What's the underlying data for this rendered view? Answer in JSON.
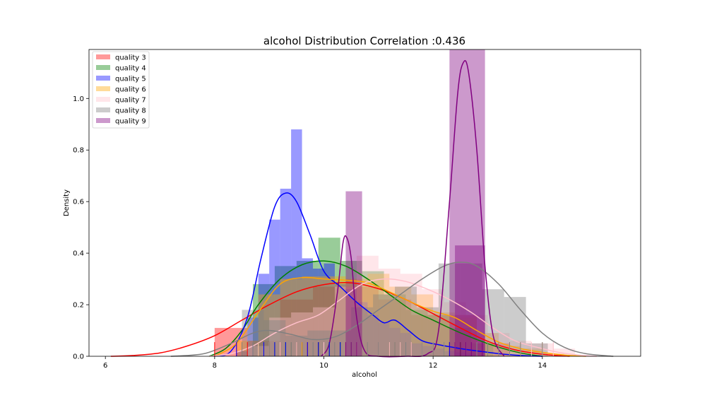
{
  "chart_data": {
    "type": "histogram-kde",
    "title": "alcohol Distribution Correlation :0.436",
    "xlabel": "alcohol",
    "ylabel": "Density",
    "xlim": [
      5.7,
      15.8
    ],
    "ylim": [
      0,
      1.19
    ],
    "x_ticks": [
      6,
      8,
      10,
      12,
      14
    ],
    "y_ticks": [
      0.0,
      0.2,
      0.4,
      0.6,
      0.8,
      1.0
    ],
    "x_tick_labels": [
      "6",
      "8",
      "10",
      "12",
      "14"
    ],
    "y_tick_labels": [
      "0.0",
      "0.2",
      "0.4",
      "0.6",
      "0.8",
      "1.0"
    ],
    "legend_position": "top-left",
    "series": [
      {
        "name": "quality 3",
        "color": "#ff0000",
        "bins": [
          [
            8.0,
            8.6,
            0.11
          ],
          [
            8.6,
            9.2,
            0.06
          ],
          [
            9.2,
            9.8,
            0.22
          ],
          [
            9.8,
            10.4,
            0.27
          ],
          [
            10.4,
            11.0,
            0.27
          ],
          [
            11.0,
            11.6,
            0.22
          ],
          [
            11.6,
            12.2,
            0.16
          ],
          [
            12.2,
            12.8,
            0.16
          ],
          [
            12.8,
            13.4,
            0.05
          ]
        ],
        "kde": [
          [
            6.1,
            0.0
          ],
          [
            6.5,
            0.003
          ],
          [
            7.0,
            0.013
          ],
          [
            7.5,
            0.04
          ],
          [
            8.0,
            0.08
          ],
          [
            8.5,
            0.14
          ],
          [
            9.0,
            0.2
          ],
          [
            9.5,
            0.25
          ],
          [
            10.0,
            0.278
          ],
          [
            10.5,
            0.285
          ],
          [
            11.0,
            0.262
          ],
          [
            11.5,
            0.22
          ],
          [
            12.0,
            0.165
          ],
          [
            12.5,
            0.11
          ],
          [
            13.0,
            0.058
          ],
          [
            13.5,
            0.025
          ],
          [
            14.0,
            0.008
          ],
          [
            14.5,
            0.0
          ]
        ],
        "rug": [
          8.0,
          8.4,
          8.6,
          9.0,
          9.2,
          9.5,
          9.7,
          9.9,
          10.0,
          10.2,
          10.4,
          10.6,
          10.8,
          11.0,
          11.3,
          11.6,
          12.0,
          12.3,
          12.5,
          13.0
        ]
      },
      {
        "name": "quality 4",
        "color": "#008000",
        "bins": [
          [
            8.7,
            9.1,
            0.28
          ],
          [
            9.1,
            9.5,
            0.35
          ],
          [
            9.5,
            9.9,
            0.37
          ],
          [
            9.9,
            10.3,
            0.46
          ],
          [
            10.3,
            10.7,
            0.37
          ],
          [
            10.7,
            11.1,
            0.33
          ],
          [
            11.1,
            11.5,
            0.24
          ],
          [
            11.5,
            11.9,
            0.18
          ],
          [
            11.9,
            12.3,
            0.16
          ],
          [
            12.3,
            12.7,
            0.11
          ],
          [
            12.7,
            13.1,
            0.05
          ]
        ],
        "kde": [
          [
            7.9,
            0.0
          ],
          [
            8.2,
            0.03
          ],
          [
            8.5,
            0.1
          ],
          [
            8.8,
            0.2
          ],
          [
            9.2,
            0.3
          ],
          [
            9.6,
            0.355
          ],
          [
            10.0,
            0.37
          ],
          [
            10.4,
            0.35
          ],
          [
            10.8,
            0.3
          ],
          [
            11.2,
            0.24
          ],
          [
            11.6,
            0.18
          ],
          [
            12.0,
            0.14
          ],
          [
            12.4,
            0.1
          ],
          [
            12.8,
            0.065
          ],
          [
            13.2,
            0.035
          ],
          [
            13.6,
            0.013
          ],
          [
            14.0,
            0.0
          ]
        ],
        "rug": [
          8.8,
          9.0,
          9.1,
          9.3,
          9.4,
          9.5,
          9.6,
          9.8,
          9.9,
          10.0,
          10.1,
          10.2,
          10.3,
          10.5,
          10.6,
          10.8,
          11.0,
          11.2,
          11.4,
          11.6,
          12.0,
          12.2,
          12.5,
          13.0
        ]
      },
      {
        "name": "quality 5",
        "color": "#0000ff",
        "bins": [
          [
            8.4,
            8.6,
            0.02
          ],
          [
            8.6,
            8.8,
            0.15
          ],
          [
            8.8,
            9.0,
            0.32
          ],
          [
            9.0,
            9.2,
            0.53
          ],
          [
            9.2,
            9.4,
            0.65
          ],
          [
            9.4,
            9.6,
            0.88
          ],
          [
            9.6,
            9.8,
            0.38
          ],
          [
            9.8,
            10.0,
            0.34
          ],
          [
            10.0,
            10.2,
            0.36
          ],
          [
            10.2,
            10.4,
            0.28
          ],
          [
            10.4,
            10.6,
            0.26
          ],
          [
            10.6,
            10.8,
            0.21
          ],
          [
            10.8,
            11.0,
            0.16
          ],
          [
            11.0,
            11.2,
            0.13
          ],
          [
            11.2,
            11.4,
            0.11
          ],
          [
            11.4,
            11.6,
            0.09
          ],
          [
            11.6,
            11.8,
            0.05
          ],
          [
            11.8,
            12.0,
            0.04
          ],
          [
            12.0,
            12.2,
            0.03
          ],
          [
            12.2,
            12.4,
            0.02
          ],
          [
            12.4,
            12.6,
            0.015
          ],
          [
            12.6,
            12.8,
            0.01
          ]
        ],
        "kde": [
          [
            8.0,
            0.0
          ],
          [
            8.3,
            0.02
          ],
          [
            8.6,
            0.15
          ],
          [
            8.85,
            0.38
          ],
          [
            9.1,
            0.58
          ],
          [
            9.3,
            0.633
          ],
          [
            9.5,
            0.6
          ],
          [
            9.75,
            0.47
          ],
          [
            10.0,
            0.33
          ],
          [
            10.3,
            0.27
          ],
          [
            10.6,
            0.21
          ],
          [
            10.9,
            0.16
          ],
          [
            11.1,
            0.13
          ],
          [
            11.3,
            0.14
          ],
          [
            11.55,
            0.1
          ],
          [
            11.8,
            0.06
          ],
          [
            12.1,
            0.045
          ],
          [
            12.5,
            0.03
          ],
          [
            12.9,
            0.018
          ],
          [
            13.3,
            0.008
          ],
          [
            13.7,
            0.002
          ],
          [
            14.0,
            0.0
          ]
        ],
        "rug": [
          8.4,
          8.5,
          8.7,
          8.9,
          9.0,
          9.1,
          9.2,
          9.3,
          9.4,
          9.5,
          9.6,
          9.7,
          9.8,
          9.9,
          10.0,
          10.1,
          10.2,
          10.3,
          10.4,
          10.5,
          10.6,
          10.8,
          11.0,
          11.2,
          11.4,
          11.6,
          11.8,
          12.0,
          12.3,
          12.6,
          13.0
        ]
      },
      {
        "name": "quality 6",
        "color": "#ffa500",
        "bins": [
          [
            8.4,
            8.8,
            0.06
          ],
          [
            8.8,
            9.2,
            0.24
          ],
          [
            9.2,
            9.6,
            0.3
          ],
          [
            9.6,
            10.0,
            0.31
          ],
          [
            10.0,
            10.4,
            0.31
          ],
          [
            10.4,
            10.8,
            0.3
          ],
          [
            10.8,
            11.2,
            0.32
          ],
          [
            11.2,
            11.6,
            0.27
          ],
          [
            11.6,
            12.0,
            0.24
          ],
          [
            12.0,
            12.4,
            0.17
          ],
          [
            12.4,
            12.8,
            0.15
          ],
          [
            12.8,
            13.2,
            0.09
          ],
          [
            13.2,
            13.6,
            0.04
          ],
          [
            13.6,
            14.0,
            0.03
          ],
          [
            14.0,
            14.4,
            0.01
          ]
        ],
        "kde": [
          [
            8.0,
            0.0
          ],
          [
            8.4,
            0.05
          ],
          [
            8.8,
            0.17
          ],
          [
            9.2,
            0.28
          ],
          [
            9.6,
            0.305
          ],
          [
            10.0,
            0.3
          ],
          [
            10.4,
            0.295
          ],
          [
            10.8,
            0.285
          ],
          [
            11.2,
            0.25
          ],
          [
            11.6,
            0.21
          ],
          [
            12.0,
            0.175
          ],
          [
            12.4,
            0.15
          ],
          [
            12.8,
            0.1
          ],
          [
            13.2,
            0.055
          ],
          [
            13.6,
            0.03
          ],
          [
            14.0,
            0.015
          ],
          [
            14.4,
            0.005
          ],
          [
            14.8,
            0.0
          ]
        ],
        "rug": [
          8.5,
          8.8,
          9.0,
          9.2,
          9.4,
          9.5,
          9.6,
          9.8,
          10.0,
          10.2,
          10.4,
          10.5,
          10.6,
          10.8,
          11.0,
          11.2,
          11.3,
          11.4,
          11.6,
          11.8,
          12.0,
          12.2,
          12.4,
          12.6,
          12.8,
          13.0,
          13.2,
          13.4,
          13.6,
          14.0
        ]
      },
      {
        "name": "quality 7",
        "color": "#ffc0cb",
        "bins": [
          [
            8.6,
            9.0,
            0.04
          ],
          [
            9.0,
            9.4,
            0.15
          ],
          [
            9.4,
            9.8,
            0.17
          ],
          [
            9.8,
            10.2,
            0.19
          ],
          [
            10.2,
            10.6,
            0.27
          ],
          [
            10.6,
            11.0,
            0.39
          ],
          [
            11.0,
            11.4,
            0.34
          ],
          [
            11.4,
            11.8,
            0.32
          ],
          [
            11.8,
            12.2,
            0.26
          ],
          [
            12.2,
            12.6,
            0.21
          ],
          [
            12.6,
            13.0,
            0.16
          ],
          [
            13.0,
            13.4,
            0.09
          ],
          [
            13.4,
            13.8,
            0.06
          ],
          [
            13.8,
            14.2,
            0.05
          ],
          [
            14.2,
            14.6,
            0.03
          ]
        ],
        "kde": [
          [
            7.9,
            0.0
          ],
          [
            8.3,
            0.01
          ],
          [
            8.7,
            0.04
          ],
          [
            9.1,
            0.09
          ],
          [
            9.5,
            0.13
          ],
          [
            9.9,
            0.16
          ],
          [
            10.3,
            0.22
          ],
          [
            10.7,
            0.28
          ],
          [
            11.1,
            0.3
          ],
          [
            11.5,
            0.29
          ],
          [
            11.9,
            0.26
          ],
          [
            12.3,
            0.22
          ],
          [
            12.7,
            0.17
          ],
          [
            13.1,
            0.11
          ],
          [
            13.5,
            0.06
          ],
          [
            13.9,
            0.035
          ],
          [
            14.3,
            0.015
          ],
          [
            14.7,
            0.004
          ],
          [
            15.0,
            0.0
          ]
        ],
        "rug": [
          8.8,
          9.0,
          9.2,
          9.5,
          9.8,
          10.0,
          10.2,
          10.4,
          10.6,
          10.8,
          11.0,
          11.2,
          11.4,
          11.6,
          11.8,
          12.0,
          12.2,
          12.4,
          12.6,
          12.8,
          13.0,
          13.2,
          13.4,
          13.6,
          13.8,
          14.0,
          14.2
        ]
      },
      {
        "name": "quality 8",
        "color": "#808080",
        "bins": [
          [
            8.5,
            8.9,
            0.18
          ],
          [
            8.9,
            9.3,
            0.14
          ],
          [
            9.3,
            9.7,
            0.08
          ],
          [
            9.7,
            10.1,
            0.1
          ],
          [
            10.1,
            10.5,
            0.1
          ],
          [
            10.5,
            10.9,
            0.19
          ],
          [
            10.9,
            11.3,
            0.24
          ],
          [
            11.3,
            11.7,
            0.27
          ],
          [
            11.7,
            12.1,
            0.19
          ],
          [
            12.1,
            12.5,
            0.36
          ],
          [
            12.5,
            12.9,
            0.36
          ],
          [
            12.9,
            13.3,
            0.26
          ],
          [
            13.3,
            13.7,
            0.23
          ],
          [
            13.7,
            14.1,
            0.05
          ]
        ],
        "kde": [
          [
            7.2,
            0.0
          ],
          [
            7.8,
            0.01
          ],
          [
            8.3,
            0.05
          ],
          [
            8.7,
            0.09
          ],
          [
            9.0,
            0.1
          ],
          [
            9.4,
            0.085
          ],
          [
            9.8,
            0.065
          ],
          [
            10.2,
            0.075
          ],
          [
            10.6,
            0.12
          ],
          [
            11.0,
            0.18
          ],
          [
            11.4,
            0.24
          ],
          [
            11.8,
            0.3
          ],
          [
            12.2,
            0.35
          ],
          [
            12.5,
            0.365
          ],
          [
            12.8,
            0.35
          ],
          [
            13.2,
            0.28
          ],
          [
            13.6,
            0.18
          ],
          [
            14.0,
            0.09
          ],
          [
            14.4,
            0.035
          ],
          [
            14.8,
            0.01
          ],
          [
            15.3,
            0.0
          ]
        ],
        "rug": [
          8.5,
          8.7,
          9.0,
          9.4,
          9.8,
          10.2,
          10.5,
          10.8,
          11.0,
          11.3,
          11.5,
          11.8,
          12.0,
          12.2,
          12.4,
          12.6,
          12.8,
          13.0,
          13.2,
          13.4,
          13.6,
          14.0
        ]
      },
      {
        "name": "quality 9",
        "color": "#800080",
        "bins": [
          [
            10.4,
            10.7,
            0.64
          ],
          [
            12.3,
            12.95,
            1.19
          ],
          [
            12.4,
            12.95,
            0.43
          ]
        ],
        "kde": [
          [
            9.95,
            0.0
          ],
          [
            10.1,
            0.05
          ],
          [
            10.25,
            0.25
          ],
          [
            10.35,
            0.44
          ],
          [
            10.42,
            0.46
          ],
          [
            10.5,
            0.38
          ],
          [
            10.6,
            0.15
          ],
          [
            10.75,
            0.02
          ],
          [
            11.0,
            0.0
          ],
          [
            11.5,
            0.0
          ],
          [
            11.9,
            0.01
          ],
          [
            12.1,
            0.1
          ],
          [
            12.3,
            0.6
          ],
          [
            12.45,
            1.02
          ],
          [
            12.55,
            1.138
          ],
          [
            12.65,
            1.1
          ],
          [
            12.8,
            0.8
          ],
          [
            12.95,
            0.35
          ],
          [
            13.1,
            0.08
          ],
          [
            13.3,
            0.0
          ]
        ],
        "rug": [
          10.4,
          10.5,
          10.6,
          12.4,
          12.5,
          12.6,
          12.7,
          12.9
        ]
      }
    ]
  }
}
